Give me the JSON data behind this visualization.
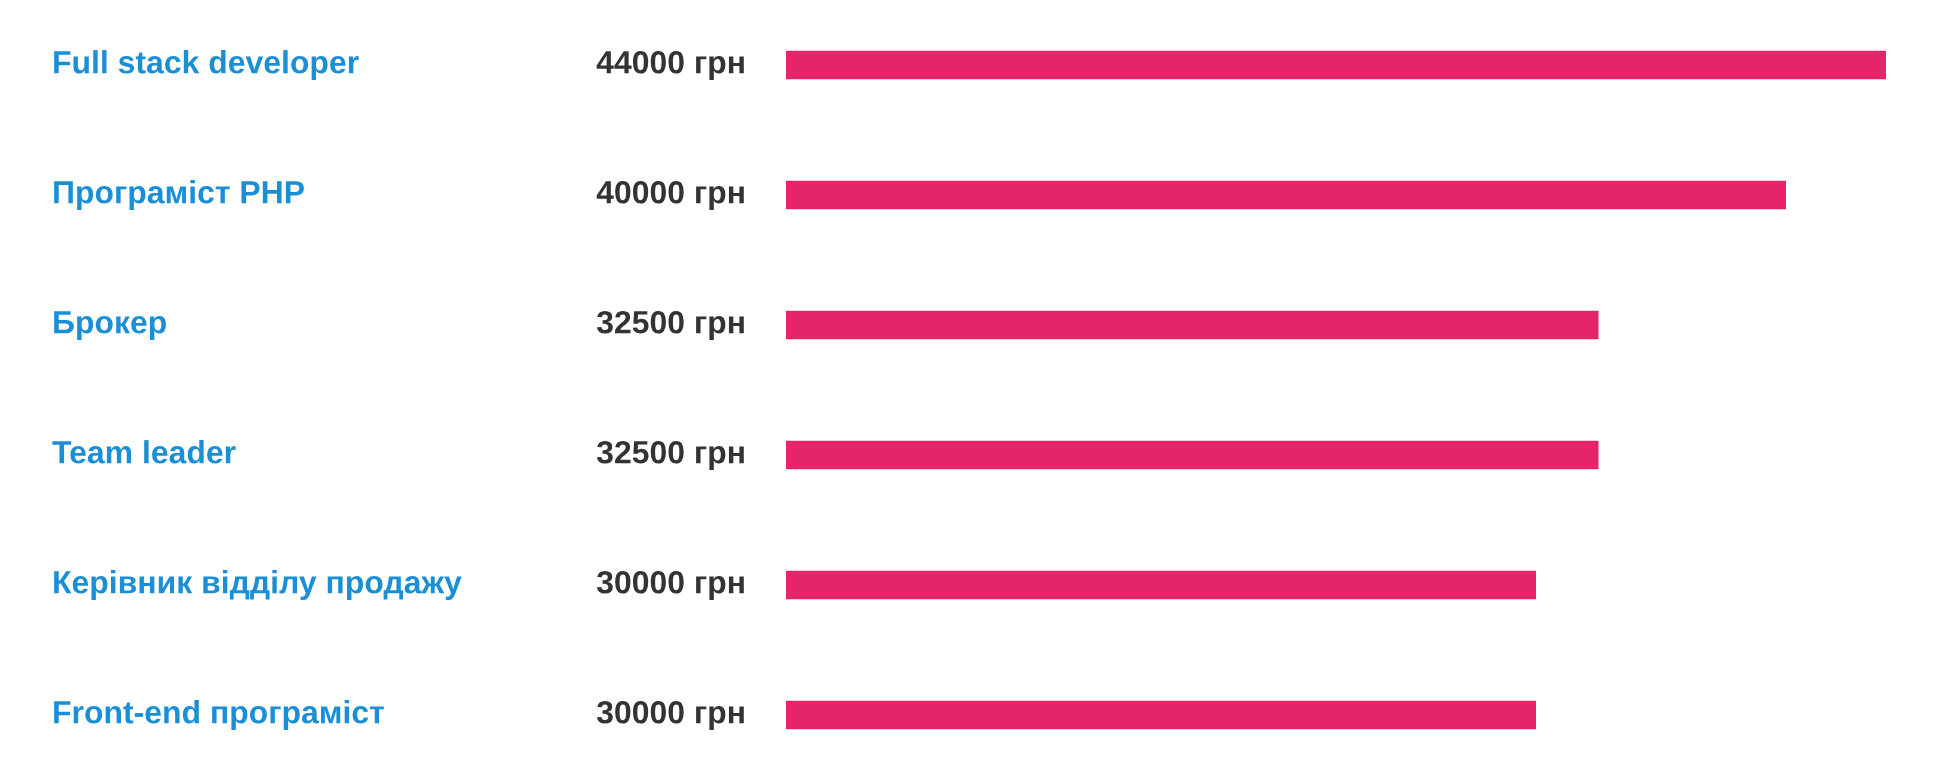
{
  "chart_data": {
    "type": "bar",
    "orientation": "horizontal",
    "categories": [
      "Full stack developer",
      "Програміст PHP",
      "Брокер",
      "Team leader",
      "Керівник відділу продажу",
      "Front-end програміст"
    ],
    "values": [
      44000,
      40000,
      32500,
      32500,
      30000,
      30000
    ],
    "value_labels": [
      "44000 грн",
      "40000 грн",
      "32500 грн",
      "32500 грн",
      "30000 грн",
      "30000 грн"
    ],
    "color": "#e6246a"
  }
}
